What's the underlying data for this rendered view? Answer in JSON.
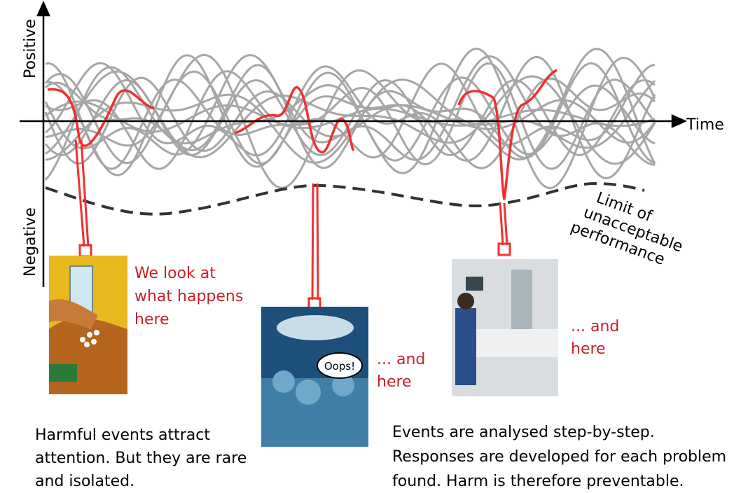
{
  "axes": {
    "positive": "Positive",
    "negative": "Negative",
    "time": "Time"
  },
  "limit_label": [
    "Limit of",
    "unacceptable",
    "performance"
  ],
  "annotations": [
    {
      "lines": [
        "We look at",
        "what happens",
        "here"
      ]
    },
    {
      "lines": [
        "... and",
        "here"
      ]
    },
    {
      "lines": [
        "... and",
        "here"
      ]
    }
  ],
  "speech_bubble": "Oops!",
  "captions": [
    {
      "lines": [
        "Harmful events attract",
        "attention. But they are rare",
        "and isolated."
      ]
    },
    {
      "lines": [
        "Events are analysed step-by-step.",
        "Responses are developed for each problem",
        "found. Harm is therefore preventable."
      ]
    }
  ]
}
